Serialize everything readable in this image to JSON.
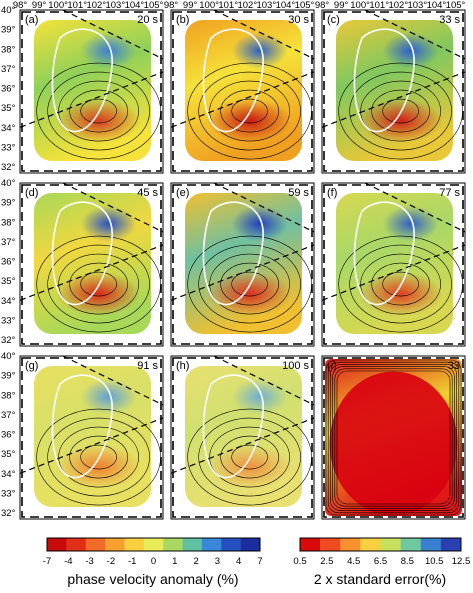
{
  "top_longitude_ticks": [
    "98°",
    "99°",
    "100°",
    "101°",
    "102°",
    "103°",
    "104°",
    "105°",
    "98°",
    "99°",
    "100°",
    "101°",
    "102°",
    "103°",
    "104°",
    "105°",
    "98°",
    "99°",
    "100°",
    "101°",
    "102°",
    "103°",
    "104°",
    "105°"
  ],
  "latitude_ticks": [
    "40°",
    "39°",
    "38°",
    "37°",
    "36°",
    "35°",
    "34°",
    "33°",
    "32°"
  ],
  "panels": [
    {
      "letter": "(a)",
      "period": "20 s",
      "colors": [
        "#f5e23a",
        "#d63b1e",
        "#3a7fd6",
        "#8fd05a"
      ]
    },
    {
      "letter": "(b)",
      "period": "30 s",
      "colors": [
        "#f0a020",
        "#c81a12",
        "#2e5fc8",
        "#f5e23a"
      ]
    },
    {
      "letter": "(c)",
      "period": "33 s",
      "colors": [
        "#e8c838",
        "#d02018",
        "#2a60d0",
        "#80c860"
      ]
    },
    {
      "letter": "(d)",
      "period": "45 s",
      "colors": [
        "#a8d858",
        "#d82a18",
        "#2850c8",
        "#f0d840"
      ]
    },
    {
      "letter": "(e)",
      "period": "59 s",
      "colors": [
        "#f0c030",
        "#d83020",
        "#2040c0",
        "#70c0a0"
      ]
    },
    {
      "letter": "(f)",
      "period": "77 s",
      "colors": [
        "#d8d850",
        "#e04020",
        "#3060c8",
        "#a8d868"
      ]
    },
    {
      "letter": "(g)",
      "period": "91 s",
      "colors": [
        "#e8e060",
        "#f08030",
        "#60a0d8",
        "#d8e068"
      ]
    },
    {
      "letter": "(h)",
      "period": "100 s",
      "colors": [
        "#e8e070",
        "#f09040",
        "#70b0d0",
        "#d0e070"
      ]
    },
    {
      "letter": "(i)",
      "period": "33",
      "colors": [
        "#e01818",
        "#d80010",
        "#f0a020",
        "#f0d030"
      ]
    }
  ],
  "colorbar_velocity": {
    "title": "phase velocity anomaly (%)",
    "tick_labels": [
      "-7",
      "-4",
      "-3",
      "-2",
      "-1",
      "0",
      "1",
      "2",
      "3",
      "4",
      "7"
    ],
    "colors": [
      "#c80a0a",
      "#e03018",
      "#f06a28",
      "#f7a030",
      "#f8d040",
      "#e8ec58",
      "#a8d860",
      "#60c0a0",
      "#3a88d8",
      "#2650c0",
      "#1a2ea0"
    ]
  },
  "colorbar_error": {
    "title": "2 x standard error(%)",
    "tick_labels": [
      "0.5",
      "2.5",
      "4.5",
      "6.5",
      "8.5",
      "10.5",
      "12.5"
    ],
    "colors": [
      "#d80a0a",
      "#f04a20",
      "#f89030",
      "#f8d040",
      "#c8e060",
      "#70c8a0",
      "#3a80d0",
      "#2a40b0"
    ]
  }
}
